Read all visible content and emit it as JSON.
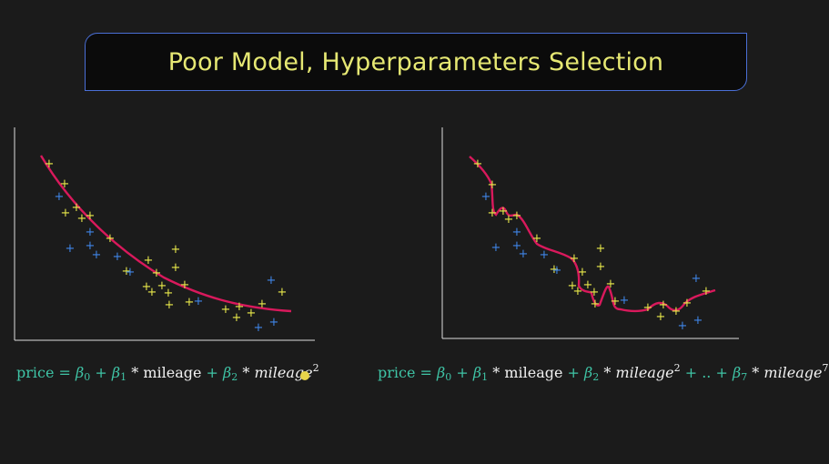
{
  "title": "Poor Model, Hyperparameters Selection",
  "colors": {
    "background": "#1b1b1b",
    "title_border": "#4a6fd6",
    "title_text": "#e6e873",
    "curve": "#d9195c",
    "point_yellow": "#e8e84a",
    "point_blue": "#3f86e8",
    "formula_teal": "#3fc4a6"
  },
  "left_formula": {
    "price": "price",
    "eq": "=",
    "b0": "β",
    "b0_sub": "0",
    "plus1": "+",
    "b1": "β",
    "b1_sub": "1",
    "times1": "*",
    "term1": "mileage",
    "plus2": "+",
    "b2": "β",
    "b2_sub": "2",
    "times2": "*",
    "term2": "mileage",
    "term2_sup": "2"
  },
  "right_formula": {
    "price": "price",
    "eq": "=",
    "b0": "β",
    "b0_sub": "0",
    "plus1": "+",
    "b1": "β",
    "b1_sub": "1",
    "times1": "*",
    "term1": "mileage",
    "plus2": "+",
    "b2": "β",
    "b2_sub": "2",
    "times2": "*",
    "term2": "mileage",
    "term2_sup": "2",
    "plus3": "+",
    "dots": "..",
    "plus4": "+",
    "b7": "β",
    "b7_sub": "7",
    "times3": "*",
    "term7": "mileage",
    "term7_sup": "7"
  },
  "chart_data": [
    {
      "type": "scatter",
      "series": [
        {
          "color": "#e8e84a",
          "points": [
            [
              0.06,
              0.95
            ],
            [
              0.07,
              0.87
            ],
            [
              0.08,
              0.82
            ],
            [
              0.1,
              0.78
            ],
            [
              0.12,
              0.7
            ],
            [
              0.13,
              0.67
            ],
            [
              0.16,
              0.62
            ],
            [
              0.2,
              0.55
            ],
            [
              0.23,
              0.55
            ],
            [
              0.22,
              0.42
            ],
            [
              0.22,
              0.35
            ],
            [
              0.24,
              0.38
            ],
            [
              0.26,
              0.28
            ],
            [
              0.27,
              0.23
            ],
            [
              0.28,
              0.22
            ],
            [
              0.3,
              0.25
            ],
            [
              0.32,
              0.18
            ],
            [
              0.34,
              0.2
            ],
            [
              0.37,
              0.2
            ],
            [
              0.38,
              0.18
            ],
            [
              0.4,
              0.2
            ],
            [
              0.42,
              0.22
            ],
            [
              0.44,
              0.24
            ],
            [
              0.46,
              0.12
            ],
            [
              0.48,
              0.15
            ]
          ]
        },
        {
          "color": "#3f86e8",
          "points": [
            [
              0.09,
              0.72
            ],
            [
              0.11,
              0.65
            ],
            [
              0.13,
              0.53
            ],
            [
              0.15,
              0.5
            ],
            [
              0.18,
              0.47
            ],
            [
              0.21,
              0.41
            ],
            [
              0.24,
              0.39
            ],
            [
              0.26,
              0.31
            ],
            [
              0.28,
              0.2
            ],
            [
              0.3,
              0.18
            ],
            [
              0.43,
              0.08
            ],
            [
              0.45,
              0.1
            ],
            [
              0.46,
              0.22
            ]
          ]
        }
      ],
      "curve": {
        "color": "#d9195c",
        "degree": 2
      }
    },
    {
      "type": "scatter",
      "series": [],
      "curve": {
        "color": "#d9195c",
        "degree": 7
      }
    }
  ]
}
